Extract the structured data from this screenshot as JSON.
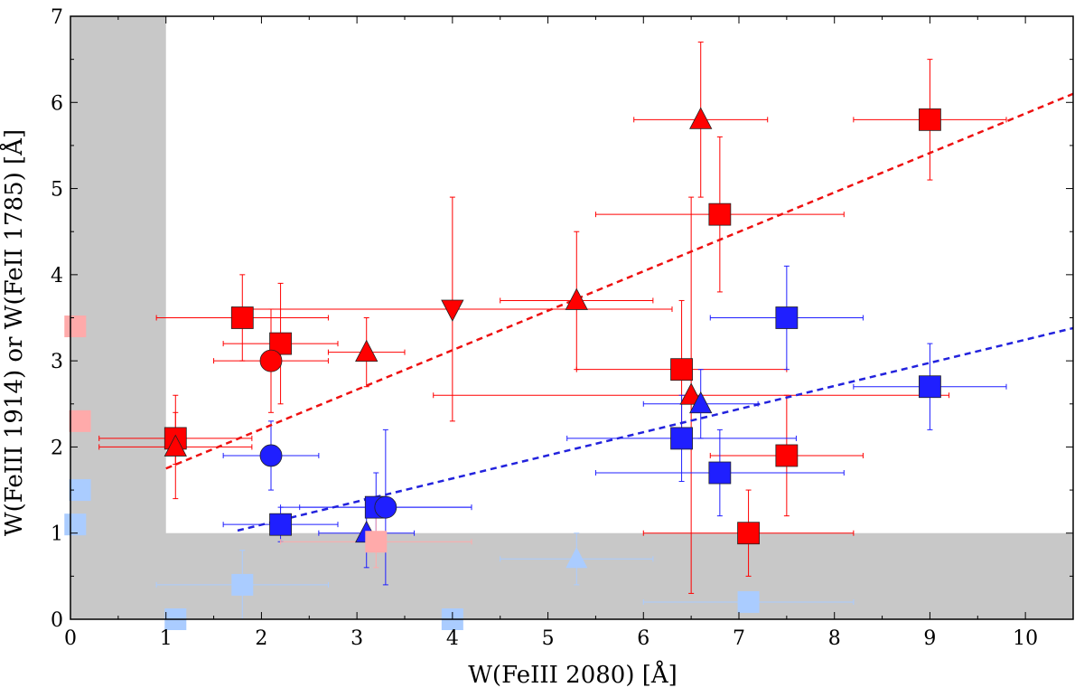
{
  "chart_data": {
    "type": "scatter",
    "title": "",
    "xlabel": "W(FeIII 2080) [Å]",
    "ylabel": "W(FeIII 1914) or W(FeII 1785) [Å]",
    "xlim": [
      0,
      10.5
    ],
    "ylim": [
      0,
      7
    ],
    "xticks": [
      0,
      1,
      2,
      3,
      4,
      5,
      6,
      7,
      8,
      9,
      10
    ],
    "yticks": [
      0,
      1,
      2,
      3,
      4,
      5,
      6,
      7
    ],
    "grid": false,
    "legend": "none",
    "colors": {
      "red": "#ff0000",
      "blue": "#1f1fff",
      "light_red": "#ffaaaa",
      "light_blue": "#aaccff",
      "shade": "#c8c8c8",
      "red_fit": "#ee1111",
      "blue_fit": "#2222dd"
    },
    "shaded_regions": [
      {
        "x": [
          0,
          1
        ],
        "y": [
          0,
          7
        ]
      },
      {
        "x": [
          0,
          10.5
        ],
        "y": [
          0,
          1
        ]
      }
    ],
    "fit_lines": [
      {
        "color": "red",
        "style": "dashed",
        "x": [
          1.0,
          10.5
        ],
        "y": [
          1.75,
          6.1
        ]
      },
      {
        "color": "blue",
        "style": "dashed",
        "x": [
          1.75,
          10.5
        ],
        "y": [
          1.03,
          3.38
        ]
      }
    ],
    "series": [
      {
        "color": "red",
        "marker": "square",
        "points": [
          {
            "x": 1.8,
            "y": 3.5,
            "xerr": [
              0.9,
              0.9
            ],
            "yerr": [
              0.5,
              0.5
            ]
          },
          {
            "x": 2.2,
            "y": 3.2,
            "xerr": [
              0.6,
              0.6
            ],
            "yerr": [
              0.7,
              0.7
            ]
          },
          {
            "x": 1.1,
            "y": 2.1,
            "xerr": [
              0.8,
              0.8
            ],
            "yerr": [
              0.3,
              0.3
            ]
          },
          {
            "x": 6.4,
            "y": 2.9,
            "xerr": [
              1.1,
              1.1
            ],
            "yerr": [
              0.8,
              0.8
            ]
          },
          {
            "x": 6.8,
            "y": 4.7,
            "xerr": [
              1.3,
              1.3
            ],
            "yerr": [
              0.9,
              0.9
            ]
          },
          {
            "x": 9.0,
            "y": 5.8,
            "xerr": [
              0.8,
              0.8
            ],
            "yerr": [
              0.7,
              0.7
            ]
          },
          {
            "x": 7.5,
            "y": 1.9,
            "xerr": [
              0.8,
              0.8
            ],
            "yerr": [
              0.7,
              0.7
            ]
          },
          {
            "x": 7.1,
            "y": 1.0,
            "xerr": [
              1.1,
              1.1
            ],
            "yerr": [
              0.5,
              0.5
            ]
          }
        ]
      },
      {
        "color": "red",
        "marker": "circle",
        "points": [
          {
            "x": 2.1,
            "y": 3.0,
            "xerr": [
              0.6,
              0.6
            ],
            "yerr": [
              0.6,
              0.6
            ]
          }
        ]
      },
      {
        "color": "red",
        "marker": "triangle-up",
        "points": [
          {
            "x": 1.1,
            "y": 2.0,
            "xerr": [
              0.8,
              0.8
            ],
            "yerr": [
              0.6,
              0.6
            ]
          },
          {
            "x": 3.1,
            "y": 3.1,
            "xerr": [
              0.4,
              0.4
            ],
            "yerr": [
              0.4,
              0.4
            ]
          },
          {
            "x": 5.3,
            "y": 3.7,
            "xerr": [
              0.8,
              0.8
            ],
            "yerr": [
              0.8,
              0.8
            ]
          },
          {
            "x": 6.6,
            "y": 5.8,
            "xerr": [
              0.7,
              0.7
            ],
            "yerr": [
              0.9,
              0.9
            ]
          },
          {
            "x": 6.5,
            "y": 2.6,
            "xerr": [
              2.7,
              2.7
            ],
            "yerr": [
              2.3,
              2.3
            ]
          }
        ]
      },
      {
        "color": "red",
        "marker": "triangle-down",
        "points": [
          {
            "x": 4.0,
            "y": 3.6,
            "xerr": [
              2.3,
              2.3
            ],
            "yerr": [
              1.3,
              1.3
            ]
          }
        ]
      },
      {
        "color": "blue",
        "marker": "square",
        "points": [
          {
            "x": 2.2,
            "y": 1.1,
            "xerr": [
              0.6,
              0.6
            ],
            "yerr": [
              0.2,
              0.2
            ]
          },
          {
            "x": 3.2,
            "y": 1.3,
            "xerr": [
              1.0,
              1.0
            ],
            "yerr": [
              0.4,
              0.4
            ]
          },
          {
            "x": 6.4,
            "y": 2.1,
            "xerr": [
              1.2,
              1.2
            ],
            "yerr": [
              0.5,
              0.5
            ]
          },
          {
            "x": 6.8,
            "y": 1.7,
            "xerr": [
              1.3,
              1.3
            ],
            "yerr": [
              0.5,
              0.5
            ]
          },
          {
            "x": 7.5,
            "y": 3.5,
            "xerr": [
              0.8,
              0.8
            ],
            "yerr": [
              0.6,
              0.6
            ]
          },
          {
            "x": 9.0,
            "y": 2.7,
            "xerr": [
              0.8,
              0.8
            ],
            "yerr": [
              0.5,
              0.5
            ]
          }
        ]
      },
      {
        "color": "blue",
        "marker": "circle",
        "points": [
          {
            "x": 2.1,
            "y": 1.9,
            "xerr": [
              0.5,
              0.5
            ],
            "yerr": [
              0.4,
              0.4
            ]
          },
          {
            "x": 3.3,
            "y": 1.3,
            "xerr": [
              0.9,
              0.9
            ],
            "yerr": [
              0.9,
              0.9
            ]
          }
        ]
      },
      {
        "color": "blue",
        "marker": "triangle-up",
        "points": [
          {
            "x": 3.1,
            "y": 1.0,
            "xerr": [
              0.5,
              0.5
            ],
            "yerr": [
              0.4,
              0.4
            ]
          },
          {
            "x": 6.6,
            "y": 2.5,
            "xerr": [
              0.6,
              0.6
            ],
            "yerr": [
              0.4,
              0.4
            ]
          }
        ]
      },
      {
        "color": "light_red",
        "marker": "square",
        "points": [
          {
            "x": 0.05,
            "y": 3.4,
            "xerr": [
              0,
              0
            ],
            "yerr": [
              0,
              0
            ]
          },
          {
            "x": 0.1,
            "y": 2.3,
            "xerr": [
              0,
              0
            ],
            "yerr": [
              0,
              0
            ]
          },
          {
            "x": 3.2,
            "y": 0.9,
            "xerr": [
              1.0,
              1.0
            ],
            "yerr": [
              0.3,
              0.3
            ]
          }
        ]
      },
      {
        "color": "light_blue",
        "marker": "square",
        "points": [
          {
            "x": 0.1,
            "y": 1.5,
            "xerr": [
              0,
              0
            ],
            "yerr": [
              0,
              0
            ]
          },
          {
            "x": 0.05,
            "y": 1.1,
            "xerr": [
              0,
              0
            ],
            "yerr": [
              0,
              0
            ]
          },
          {
            "x": 1.8,
            "y": 0.4,
            "xerr": [
              0.9,
              0.9
            ],
            "yerr": [
              0.4,
              0.4
            ]
          },
          {
            "x": 1.1,
            "y": 0.0,
            "xerr": [
              0,
              0
            ],
            "yerr": [
              0,
              0
            ]
          },
          {
            "x": 4.0,
            "y": 0.0,
            "xerr": [
              0,
              0
            ],
            "yerr": [
              0,
              0
            ]
          },
          {
            "x": 7.1,
            "y": 0.2,
            "xerr": [
              1.1,
              1.1
            ],
            "yerr": [
              0,
              0
            ]
          }
        ]
      },
      {
        "color": "light_blue",
        "marker": "triangle-up",
        "points": [
          {
            "x": 5.3,
            "y": 0.7,
            "xerr": [
              0.8,
              0.8
            ],
            "yerr": [
              0.3,
              0.3
            ]
          }
        ]
      }
    ]
  }
}
